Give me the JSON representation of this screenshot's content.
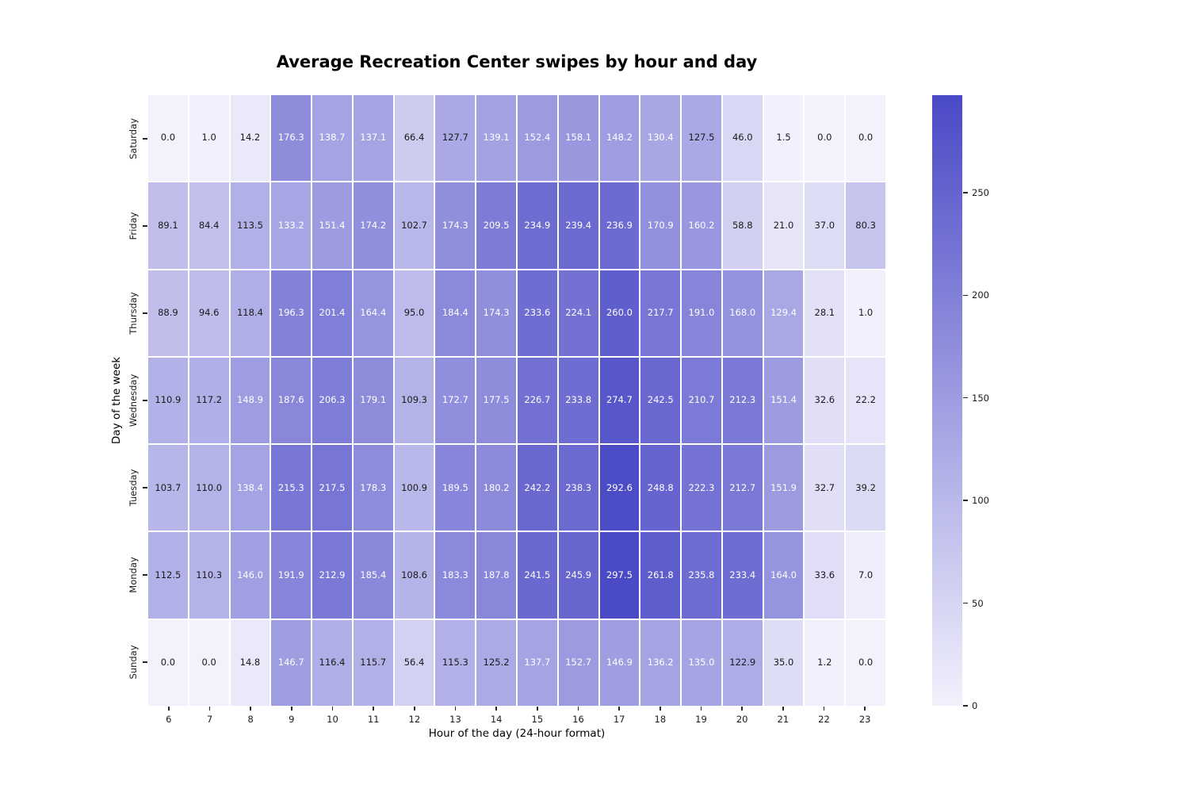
{
  "chart_data": {
    "type": "heatmap",
    "title": "Average Recreation Center swipes by hour and day",
    "xlabel": "Hour of the day (24-hour format)",
    "ylabel": "Day of the week",
    "x": [
      "6",
      "7",
      "8",
      "9",
      "10",
      "11",
      "12",
      "13",
      "14",
      "15",
      "16",
      "17",
      "18",
      "19",
      "20",
      "21",
      "22",
      "23"
    ],
    "rows": [
      "Saturday",
      "Friday",
      "Thursday",
      "Wednesday",
      "Tuesday",
      "Monday",
      "Sunday"
    ],
    "series": [
      {
        "name": "Saturday",
        "values": [
          0.0,
          1.0,
          14.2,
          176.3,
          138.7,
          137.1,
          66.4,
          127.7,
          139.1,
          152.4,
          158.1,
          148.2,
          130.4,
          127.5,
          46.0,
          1.5,
          0.0,
          0.0
        ]
      },
      {
        "name": "Friday",
        "values": [
          89.1,
          84.4,
          113.5,
          133.2,
          151.4,
          174.2,
          102.7,
          174.3,
          209.5,
          234.9,
          239.4,
          236.9,
          170.9,
          160.2,
          58.8,
          21.0,
          37.0,
          80.3
        ]
      },
      {
        "name": "Thursday",
        "values": [
          88.9,
          94.6,
          118.4,
          196.3,
          201.4,
          164.4,
          95.0,
          184.4,
          174.3,
          233.6,
          224.1,
          260.0,
          217.7,
          191.0,
          168.0,
          129.4,
          28.1,
          1.0
        ]
      },
      {
        "name": "Wednesday",
        "values": [
          110.9,
          117.2,
          148.9,
          187.6,
          206.3,
          179.1,
          109.3,
          172.7,
          177.5,
          226.7,
          233.8,
          274.7,
          242.5,
          210.7,
          212.3,
          151.4,
          32.6,
          22.2
        ]
      },
      {
        "name": "Tuesday",
        "values": [
          103.7,
          110.0,
          138.4,
          215.3,
          217.5,
          178.3,
          100.9,
          189.5,
          180.2,
          242.2,
          238.3,
          292.6,
          248.8,
          222.3,
          212.7,
          151.9,
          32.7,
          39.2
        ]
      },
      {
        "name": "Monday",
        "values": [
          112.5,
          110.3,
          146.0,
          191.9,
          212.9,
          185.4,
          108.6,
          183.3,
          187.8,
          241.5,
          245.9,
          297.5,
          261.8,
          235.8,
          233.4,
          164.0,
          33.6,
          7.0
        ]
      },
      {
        "name": "Sunday",
        "values": [
          0.0,
          0.0,
          14.8,
          146.7,
          116.4,
          115.7,
          56.4,
          115.3,
          125.2,
          137.7,
          152.7,
          146.9,
          136.2,
          135.0,
          122.9,
          35.0,
          1.2,
          0.0
        ]
      }
    ],
    "vmin": 0,
    "vmax": 297.5,
    "colorbar_ticks": [
      0,
      50,
      100,
      150,
      200,
      250
    ],
    "colors": {
      "low": "#f2f1fc",
      "high": "#4a49c6",
      "cell_text_light": "#ffffff",
      "cell_text_dark": "#1a1a1a",
      "gridline": "#ffffff"
    },
    "text_color_threshold": 128.5,
    "legend_position": "colorbar-right",
    "grid": false
  }
}
